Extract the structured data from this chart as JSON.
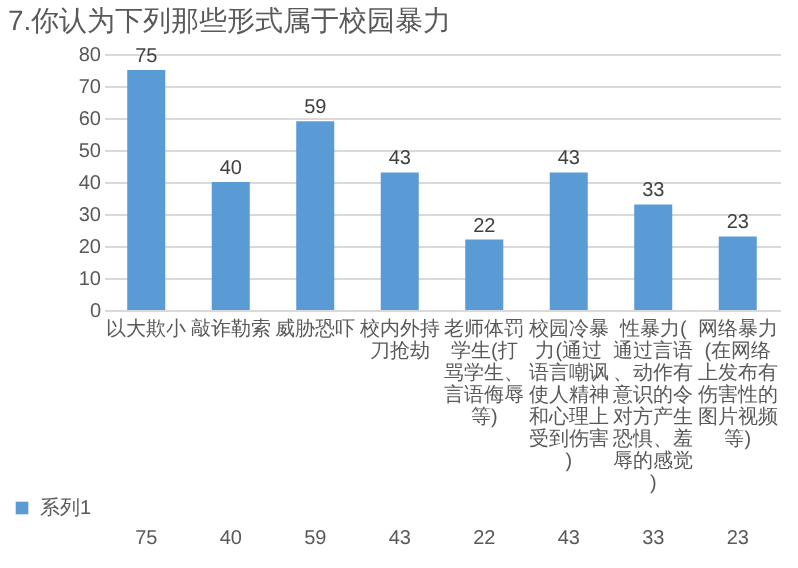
{
  "chart_data": {
    "type": "bar",
    "title": "7.你认为下列那些形式属于校园暴力",
    "categories": [
      "以大欺小",
      "敲诈勒索",
      "威胁恐吓",
      "校内外持刀抢劫",
      "老师体罚学生(打骂学生、言语侮辱等)",
      "校园冷暴力(通过语言嘲讽使人精神和心理上受到伤害)",
      "性暴力(通过言语、动作有意识的令对方产生恐惧、羞辱的感觉)",
      "网络暴力(在网络上发布有伤害性的图片视频等)"
    ],
    "series": [
      {
        "name": "系列1",
        "color": "#5b9bd5",
        "values": [
          75,
          40,
          59,
          43,
          22,
          43,
          33,
          23
        ],
        "value_labels": [
          "75",
          "40",
          "59",
          "43",
          "22",
          "43",
          "33",
          "23"
        ]
      }
    ],
    "ylim": [
      0,
      80
    ],
    "yticks": [
      0,
      10,
      20,
      30,
      40,
      50,
      60,
      70,
      80
    ],
    "grid": "y",
    "data_labels": true,
    "legend": "bottom left"
  }
}
